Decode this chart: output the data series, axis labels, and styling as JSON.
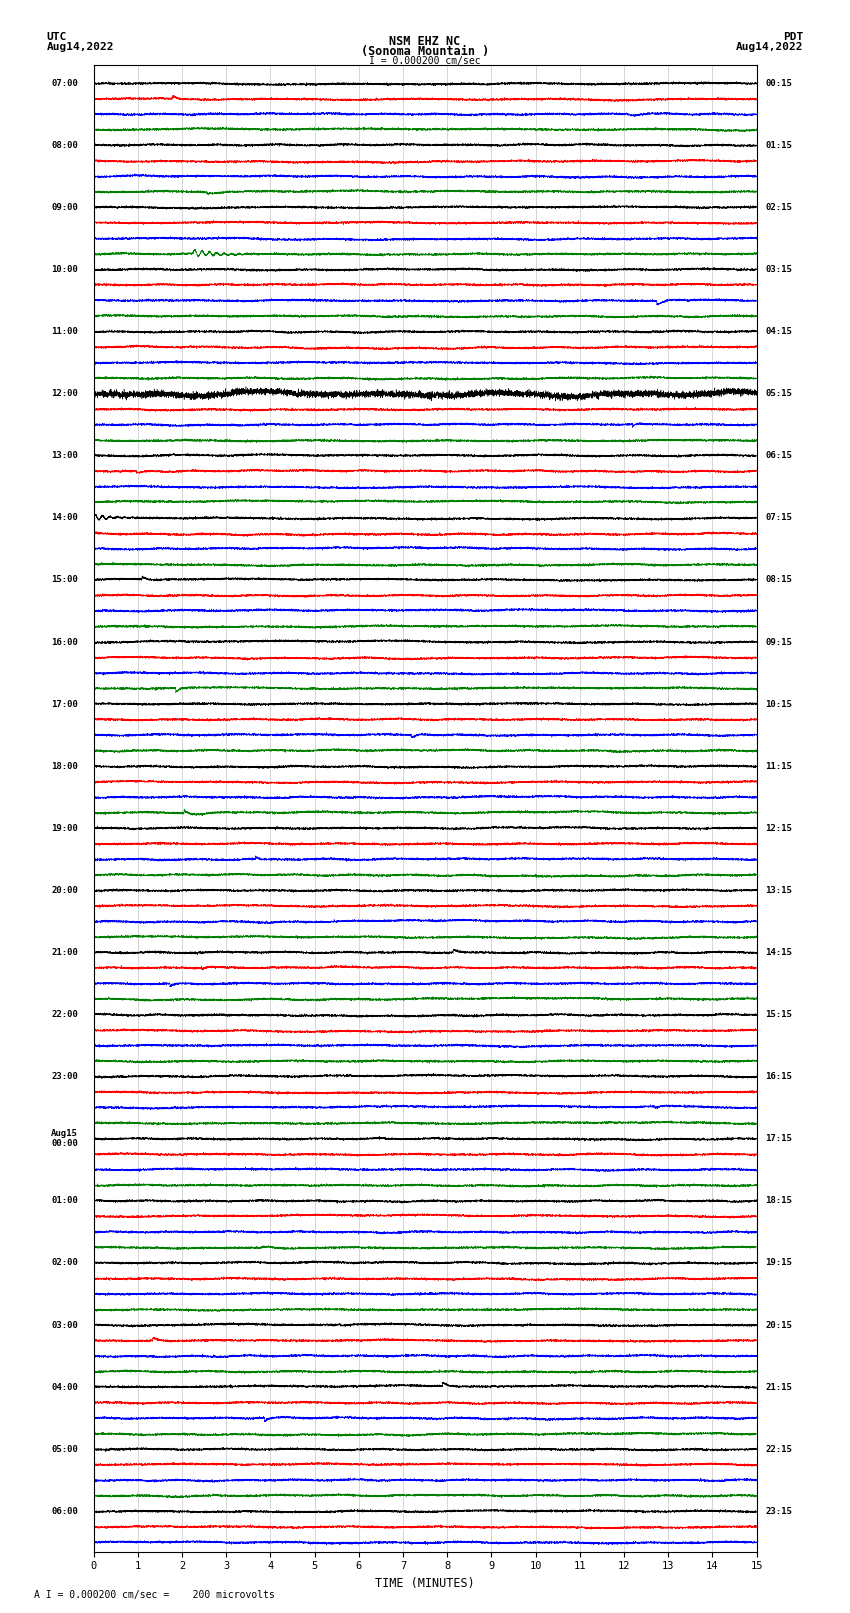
{
  "title_line1": "NSM EHZ NC",
  "title_line2": "(Sonoma Mountain )",
  "title_line3": "I = 0.000200 cm/sec",
  "xlabel": "TIME (MINUTES)",
  "footer": "A I = 0.000200 cm/sec =    200 microvolts",
  "background_color": "#ffffff",
  "trace_colors": [
    "black",
    "red",
    "blue",
    "green"
  ],
  "utc_times": [
    "07:00",
    "",
    "",
    "",
    "08:00",
    "",
    "",
    "",
    "09:00",
    "",
    "",
    "",
    "10:00",
    "",
    "",
    "",
    "11:00",
    "",
    "",
    "",
    "12:00",
    "",
    "",
    "",
    "13:00",
    "",
    "",
    "",
    "14:00",
    "",
    "",
    "",
    "15:00",
    "",
    "",
    "",
    "16:00",
    "",
    "",
    "",
    "17:00",
    "",
    "",
    "",
    "18:00",
    "",
    "",
    "",
    "19:00",
    "",
    "",
    "",
    "20:00",
    "",
    "",
    "",
    "21:00",
    "",
    "",
    "",
    "22:00",
    "",
    "",
    "",
    "23:00",
    "",
    "",
    "",
    "Aug15\n00:00",
    "",
    "",
    "",
    "01:00",
    "",
    "",
    "",
    "02:00",
    "",
    "",
    "",
    "03:00",
    "",
    "",
    "",
    "04:00",
    "",
    "",
    "",
    "05:00",
    "",
    "",
    "",
    "06:00",
    "",
    ""
  ],
  "pdt_times": [
    "00:15",
    "",
    "",
    "",
    "01:15",
    "",
    "",
    "",
    "02:15",
    "",
    "",
    "",
    "03:15",
    "",
    "",
    "",
    "04:15",
    "",
    "",
    "",
    "05:15",
    "",
    "",
    "",
    "06:15",
    "",
    "",
    "",
    "07:15",
    "",
    "",
    "",
    "08:15",
    "",
    "",
    "",
    "09:15",
    "",
    "",
    "",
    "10:15",
    "",
    "",
    "",
    "11:15",
    "",
    "",
    "",
    "12:15",
    "",
    "",
    "",
    "13:15",
    "",
    "",
    "",
    "14:15",
    "",
    "",
    "",
    "15:15",
    "",
    "",
    "",
    "16:15",
    "",
    "",
    "",
    "17:15",
    "",
    "",
    "",
    "18:15",
    "",
    "",
    "",
    "19:15",
    "",
    "",
    "",
    "20:15",
    "",
    "",
    "",
    "21:15",
    "",
    "",
    "",
    "22:15",
    "",
    "",
    "",
    "23:15",
    "",
    ""
  ],
  "num_rows": 95,
  "minutes": 15,
  "seed": 42
}
